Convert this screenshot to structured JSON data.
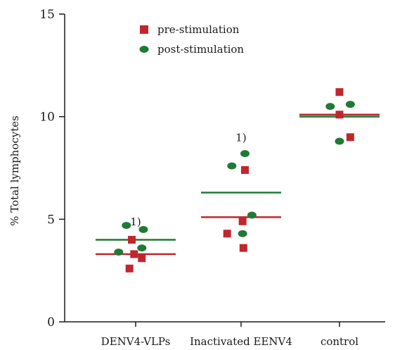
{
  "chart_data": {
    "type": "scatter",
    "title": "",
    "xlabel": "",
    "ylabel": "% Total lymphocytes",
    "ylim": [
      0,
      15
    ],
    "yticks": [
      0,
      5,
      10,
      15
    ],
    "categories": [
      "DENV4-VLPs",
      "Inactivated EENV4",
      "control"
    ],
    "grid": false,
    "legend": {
      "placement": "top-center",
      "entries": [
        "pre-stimulation",
        "post-stimulation"
      ]
    },
    "colors": {
      "pre-stimulation": "#c0272d",
      "post-stimulation": "#1f7a35"
    },
    "series": [
      {
        "name": "pre-stimulation",
        "marker": "square",
        "points": [
          {
            "category": "DENV4-VLPs",
            "offset": -0.05,
            "y": 4.0
          },
          {
            "category": "DENV4-VLPs",
            "offset": -0.02,
            "y": 3.3
          },
          {
            "category": "DENV4-VLPs",
            "offset": 0.08,
            "y": 3.1
          },
          {
            "category": "DENV4-VLPs",
            "offset": -0.08,
            "y": 2.6
          },
          {
            "category": "Inactivated EENV4",
            "offset": 0.05,
            "y": 7.4
          },
          {
            "category": "Inactivated EENV4",
            "offset": 0.02,
            "y": 4.9
          },
          {
            "category": "Inactivated EENV4",
            "offset": -0.18,
            "y": 4.3
          },
          {
            "category": "Inactivated EENV4",
            "offset": 0.03,
            "y": 3.6
          },
          {
            "category": "control",
            "offset": 0.0,
            "y": 11.2
          },
          {
            "category": "control",
            "offset": 0.0,
            "y": 10.1
          },
          {
            "category": "control",
            "offset": 0.14,
            "y": 9.0
          }
        ],
        "mean": [
          3.3,
          5.1,
          10.1
        ]
      },
      {
        "name": "post-stimulation",
        "marker": "circle",
        "points": [
          {
            "category": "DENV4-VLPs",
            "offset": -0.12,
            "y": 4.7
          },
          {
            "category": "DENV4-VLPs",
            "offset": 0.1,
            "y": 4.5
          },
          {
            "category": "DENV4-VLPs",
            "offset": 0.08,
            "y": 3.6
          },
          {
            "category": "DENV4-VLPs",
            "offset": -0.22,
            "y": 3.4
          },
          {
            "category": "Inactivated EENV4",
            "offset": 0.05,
            "y": 8.2
          },
          {
            "category": "Inactivated EENV4",
            "offset": -0.12,
            "y": 7.6
          },
          {
            "category": "Inactivated EENV4",
            "offset": 0.14,
            "y": 5.2
          },
          {
            "category": "Inactivated EENV4",
            "offset": 0.02,
            "y": 4.3
          },
          {
            "category": "control",
            "offset": -0.12,
            "y": 10.5
          },
          {
            "category": "control",
            "offset": 0.14,
            "y": 10.6
          },
          {
            "category": "control",
            "offset": 0.0,
            "y": 8.8
          }
        ],
        "mean": [
          4.0,
          6.3,
          10.0
        ]
      }
    ],
    "annotations": [
      {
        "category": "DENV4-VLPs",
        "y": 4.7,
        "text": "1)"
      },
      {
        "category": "Inactivated EENV4",
        "y": 8.8,
        "text": "1)"
      }
    ]
  }
}
